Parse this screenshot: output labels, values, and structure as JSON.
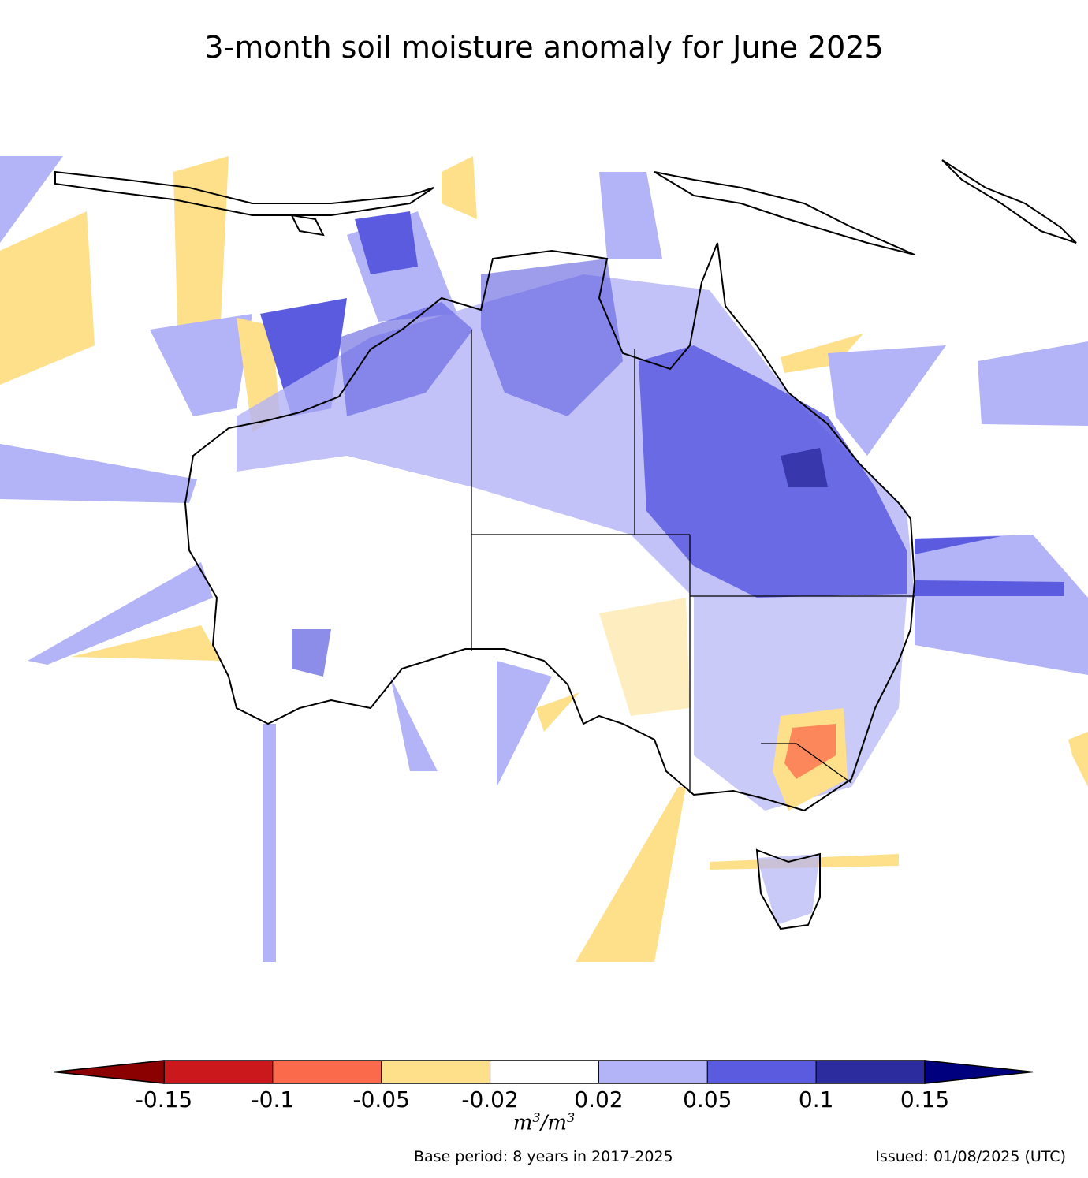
{
  "title": "3-month soil moisture anomaly for June 2025",
  "colorbar": {
    "ticks": [
      "-0.15",
      "-0.1",
      "-0.05",
      "-0.02",
      "0.02",
      "0.05",
      "0.1",
      "0.15"
    ],
    "bins": [
      {
        "from": -0.15,
        "to": -0.1,
        "color": "#cb181d"
      },
      {
        "from": -0.1,
        "to": -0.05,
        "color": "#fb6a4a"
      },
      {
        "from": -0.05,
        "to": -0.02,
        "color": "#fee08b"
      },
      {
        "from": -0.02,
        "to": 0.02,
        "color": "#ffffff"
      },
      {
        "from": 0.02,
        "to": 0.05,
        "color": "#b3b3f7"
      },
      {
        "from": 0.05,
        "to": 0.1,
        "color": "#5b5be0"
      },
      {
        "from": 0.1,
        "to": 0.15,
        "color": "#2c2c9e"
      }
    ],
    "under_color": "#8b0000",
    "over_color": "#00007f",
    "units_base": "m",
    "units_exp": "3"
  },
  "footer": {
    "base_period": "Base period: 8 years in 2017-2025",
    "issued": "Issued: 01/08/2025 (UTC)"
  },
  "colors": {
    "yellow": "#fee08b",
    "light_blue": "#b3b3f7",
    "mid_blue": "#5b5be0",
    "dark_blue": "#2c2c9e",
    "red": "#fb6a4a"
  }
}
